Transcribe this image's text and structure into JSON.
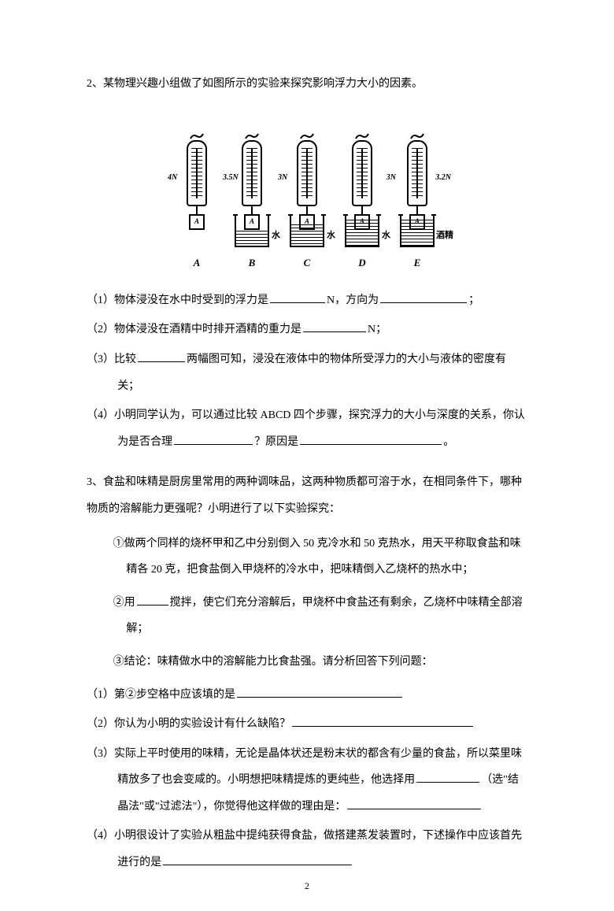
{
  "q2": {
    "intro": "2、某物理兴趣小组做了如图所示的实验来探究影响浮力大小的因素。",
    "scales": [
      {
        "reading": "4N",
        "block": "A",
        "beaker": false,
        "caption": "A",
        "side": "left"
      },
      {
        "reading": "3.5N",
        "block": "A",
        "beaker": true,
        "liquid": "水",
        "waterHeight": 22,
        "caption": "B",
        "side": "left"
      },
      {
        "reading": "3N",
        "block": "A",
        "beaker": true,
        "liquid": "水",
        "waterHeight": 30,
        "caption": "C",
        "side": "left"
      },
      {
        "reading": "3N",
        "block": "A",
        "beaker": true,
        "liquid": "水",
        "waterHeight": 36,
        "caption": "D",
        "side": "right"
      },
      {
        "reading": "3.2N",
        "block": "A",
        "beaker": true,
        "liquid": "酒精",
        "waterHeight": 36,
        "caption": "E",
        "side": "right"
      }
    ],
    "s1_a": "（1）物体浸没在水中时受到的浮力是",
    "s1_b": "N，方向为",
    "s1_c": "；",
    "s2_a": "（2）物体浸没在酒精中时排开酒精的重力是",
    "s2_b": "N；",
    "s3_a": "（3）比较",
    "s3_b": "两幅图可知，浸没在液体中的物体所受浮力的大小与液体的密度有关；",
    "s4_a": "（4）小明同学认为，可以通过比较 ABCD 四个步骤，探究浮力的大小与深度的关系，你认为是否合理",
    "s4_b": "？原因是",
    "s4_c": "。"
  },
  "q3": {
    "intro": "3、食盐和味精是厨房里常用的两种调味品，这两种物质都可溶于水，在相同条件下，哪种物质的溶解能力更强呢？小明进行了以下实验探究：",
    "step1": "①做两个同样的烧杯甲和乙中分别倒入 50 克冷水和 50 克热水，用天平称取食盐和味精各 20 克，把食盐倒入甲烧杯的冷水中，把味精倒入乙烧杯的热水中；",
    "step2_a": "②用",
    "step2_b": "搅拌，使它们充分溶解后，甲烧杯中食盐还有剩余，乙烧杯中味精全部溶解；",
    "step3": "③结论：味精做水中的溶解能力比食盐强。请分析回答下列问题：",
    "s1": "（1）第②步空格中应该填的是",
    "s2": "（2）你认为小明的实验设计有什么缺陷？",
    "s3_a": "（3）实际上平时使用的味精，无论是晶体状还是粉末状的都含有少量的食盐，所以菜里味精放多了也会变咸的。小明想把味精提炼的更纯些，他选择用",
    "s3_b": "（选\"结晶法\"或\"过滤法\"），你觉得他这样做的理由是：",
    "s4": "（4）小明很设计了实验从粗盐中提纯获得食盐，做搭建蒸发装置时，下述操作中应该首先进行的是"
  },
  "pageNumber": "2"
}
